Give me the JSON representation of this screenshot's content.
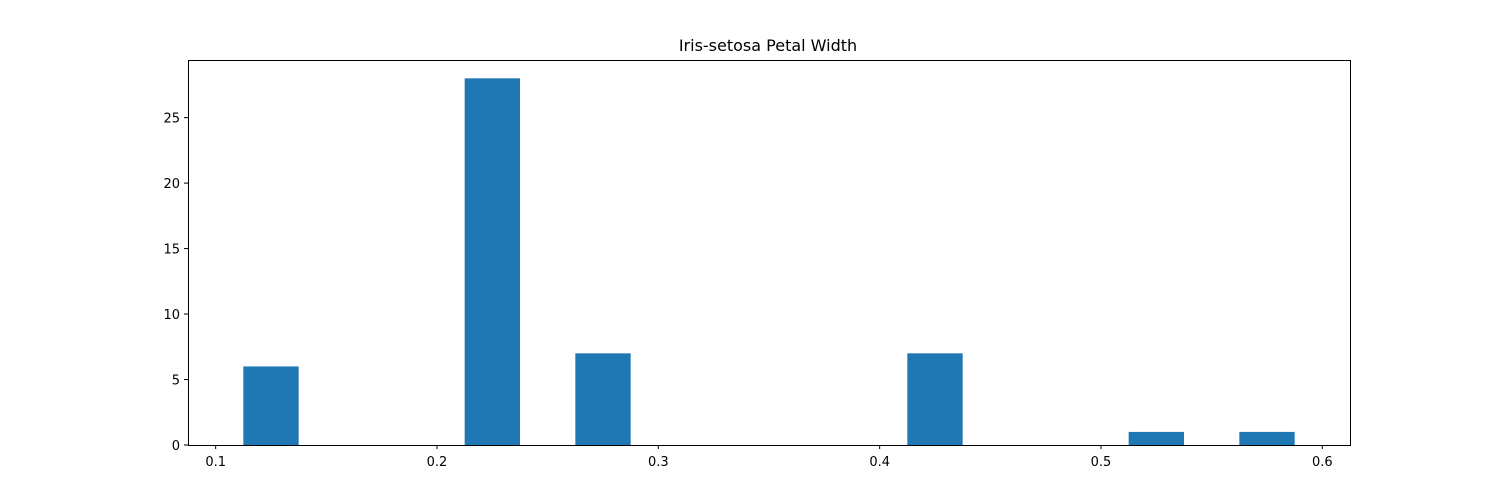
{
  "chart_data": {
    "type": "bar",
    "title": "Iris-setosa Petal Width",
    "xlabel": "",
    "ylabel": "",
    "bin_width": 0.025,
    "bars": [
      {
        "x_start": 0.1125,
        "x_end": 0.1375,
        "count": 6
      },
      {
        "x_start": 0.2125,
        "x_end": 0.2375,
        "count": 28
      },
      {
        "x_start": 0.2625,
        "x_end": 0.2875,
        "count": 7
      },
      {
        "x_start": 0.4125,
        "x_end": 0.4375,
        "count": 7
      },
      {
        "x_start": 0.5125,
        "x_end": 0.5375,
        "count": 1
      },
      {
        "x_start": 0.5625,
        "x_end": 0.5875,
        "count": 1
      }
    ],
    "xlim": [
      0.0875,
      0.6125
    ],
    "ylim": [
      0,
      29.4
    ],
    "xticks": [
      0.1,
      0.2,
      0.3,
      0.4,
      0.5,
      0.6
    ],
    "xtick_labels": [
      "0.1",
      "0.2",
      "0.3",
      "0.4",
      "0.5",
      "0.6"
    ],
    "yticks": [
      0,
      5,
      10,
      15,
      20,
      25
    ],
    "ytick_labels": [
      "0",
      "5",
      "10",
      "15",
      "20",
      "25"
    ],
    "grid": false,
    "bar_color": "#1f77b4"
  }
}
